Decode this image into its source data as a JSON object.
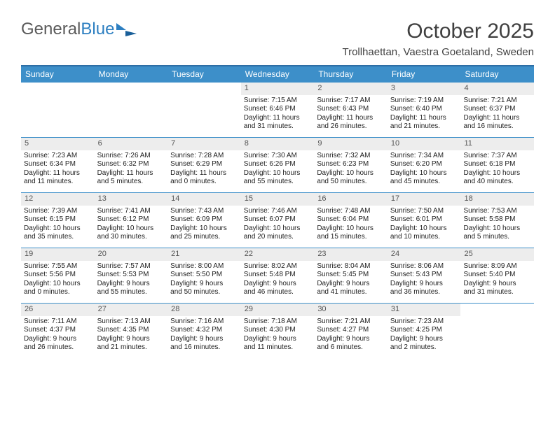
{
  "logo": {
    "text_a": "General",
    "text_b": "Blue"
  },
  "title": "October 2025",
  "subtitle": "Trollhaettan, Vaestra Goetaland, Sweden",
  "colors": {
    "header_bg": "#3d8fc9",
    "header_border": "#2d6ea5",
    "week_border": "#3d8fc9",
    "daynum_bg": "#ededed",
    "text": "#333333"
  },
  "day_labels": [
    "Sunday",
    "Monday",
    "Tuesday",
    "Wednesday",
    "Thursday",
    "Friday",
    "Saturday"
  ],
  "weeks": [
    [
      {
        "day": "",
        "empty": true
      },
      {
        "day": "",
        "empty": true
      },
      {
        "day": "",
        "empty": true
      },
      {
        "day": "1",
        "sunrise": "Sunrise: 7:15 AM",
        "sunset": "Sunset: 6:46 PM",
        "daylight1": "Daylight: 11 hours",
        "daylight2": "and 31 minutes."
      },
      {
        "day": "2",
        "sunrise": "Sunrise: 7:17 AM",
        "sunset": "Sunset: 6:43 PM",
        "daylight1": "Daylight: 11 hours",
        "daylight2": "and 26 minutes."
      },
      {
        "day": "3",
        "sunrise": "Sunrise: 7:19 AM",
        "sunset": "Sunset: 6:40 PM",
        "daylight1": "Daylight: 11 hours",
        "daylight2": "and 21 minutes."
      },
      {
        "day": "4",
        "sunrise": "Sunrise: 7:21 AM",
        "sunset": "Sunset: 6:37 PM",
        "daylight1": "Daylight: 11 hours",
        "daylight2": "and 16 minutes."
      }
    ],
    [
      {
        "day": "5",
        "sunrise": "Sunrise: 7:23 AM",
        "sunset": "Sunset: 6:34 PM",
        "daylight1": "Daylight: 11 hours",
        "daylight2": "and 11 minutes."
      },
      {
        "day": "6",
        "sunrise": "Sunrise: 7:26 AM",
        "sunset": "Sunset: 6:32 PM",
        "daylight1": "Daylight: 11 hours",
        "daylight2": "and 5 minutes."
      },
      {
        "day": "7",
        "sunrise": "Sunrise: 7:28 AM",
        "sunset": "Sunset: 6:29 PM",
        "daylight1": "Daylight: 11 hours",
        "daylight2": "and 0 minutes."
      },
      {
        "day": "8",
        "sunrise": "Sunrise: 7:30 AM",
        "sunset": "Sunset: 6:26 PM",
        "daylight1": "Daylight: 10 hours",
        "daylight2": "and 55 minutes."
      },
      {
        "day": "9",
        "sunrise": "Sunrise: 7:32 AM",
        "sunset": "Sunset: 6:23 PM",
        "daylight1": "Daylight: 10 hours",
        "daylight2": "and 50 minutes."
      },
      {
        "day": "10",
        "sunrise": "Sunrise: 7:34 AM",
        "sunset": "Sunset: 6:20 PM",
        "daylight1": "Daylight: 10 hours",
        "daylight2": "and 45 minutes."
      },
      {
        "day": "11",
        "sunrise": "Sunrise: 7:37 AM",
        "sunset": "Sunset: 6:18 PM",
        "daylight1": "Daylight: 10 hours",
        "daylight2": "and 40 minutes."
      }
    ],
    [
      {
        "day": "12",
        "sunrise": "Sunrise: 7:39 AM",
        "sunset": "Sunset: 6:15 PM",
        "daylight1": "Daylight: 10 hours",
        "daylight2": "and 35 minutes."
      },
      {
        "day": "13",
        "sunrise": "Sunrise: 7:41 AM",
        "sunset": "Sunset: 6:12 PM",
        "daylight1": "Daylight: 10 hours",
        "daylight2": "and 30 minutes."
      },
      {
        "day": "14",
        "sunrise": "Sunrise: 7:43 AM",
        "sunset": "Sunset: 6:09 PM",
        "daylight1": "Daylight: 10 hours",
        "daylight2": "and 25 minutes."
      },
      {
        "day": "15",
        "sunrise": "Sunrise: 7:46 AM",
        "sunset": "Sunset: 6:07 PM",
        "daylight1": "Daylight: 10 hours",
        "daylight2": "and 20 minutes."
      },
      {
        "day": "16",
        "sunrise": "Sunrise: 7:48 AM",
        "sunset": "Sunset: 6:04 PM",
        "daylight1": "Daylight: 10 hours",
        "daylight2": "and 15 minutes."
      },
      {
        "day": "17",
        "sunrise": "Sunrise: 7:50 AM",
        "sunset": "Sunset: 6:01 PM",
        "daylight1": "Daylight: 10 hours",
        "daylight2": "and 10 minutes."
      },
      {
        "day": "18",
        "sunrise": "Sunrise: 7:53 AM",
        "sunset": "Sunset: 5:58 PM",
        "daylight1": "Daylight: 10 hours",
        "daylight2": "and 5 minutes."
      }
    ],
    [
      {
        "day": "19",
        "sunrise": "Sunrise: 7:55 AM",
        "sunset": "Sunset: 5:56 PM",
        "daylight1": "Daylight: 10 hours",
        "daylight2": "and 0 minutes."
      },
      {
        "day": "20",
        "sunrise": "Sunrise: 7:57 AM",
        "sunset": "Sunset: 5:53 PM",
        "daylight1": "Daylight: 9 hours",
        "daylight2": "and 55 minutes."
      },
      {
        "day": "21",
        "sunrise": "Sunrise: 8:00 AM",
        "sunset": "Sunset: 5:50 PM",
        "daylight1": "Daylight: 9 hours",
        "daylight2": "and 50 minutes."
      },
      {
        "day": "22",
        "sunrise": "Sunrise: 8:02 AM",
        "sunset": "Sunset: 5:48 PM",
        "daylight1": "Daylight: 9 hours",
        "daylight2": "and 46 minutes."
      },
      {
        "day": "23",
        "sunrise": "Sunrise: 8:04 AM",
        "sunset": "Sunset: 5:45 PM",
        "daylight1": "Daylight: 9 hours",
        "daylight2": "and 41 minutes."
      },
      {
        "day": "24",
        "sunrise": "Sunrise: 8:06 AM",
        "sunset": "Sunset: 5:43 PM",
        "daylight1": "Daylight: 9 hours",
        "daylight2": "and 36 minutes."
      },
      {
        "day": "25",
        "sunrise": "Sunrise: 8:09 AM",
        "sunset": "Sunset: 5:40 PM",
        "daylight1": "Daylight: 9 hours",
        "daylight2": "and 31 minutes."
      }
    ],
    [
      {
        "day": "26",
        "sunrise": "Sunrise: 7:11 AM",
        "sunset": "Sunset: 4:37 PM",
        "daylight1": "Daylight: 9 hours",
        "daylight2": "and 26 minutes."
      },
      {
        "day": "27",
        "sunrise": "Sunrise: 7:13 AM",
        "sunset": "Sunset: 4:35 PM",
        "daylight1": "Daylight: 9 hours",
        "daylight2": "and 21 minutes."
      },
      {
        "day": "28",
        "sunrise": "Sunrise: 7:16 AM",
        "sunset": "Sunset: 4:32 PM",
        "daylight1": "Daylight: 9 hours",
        "daylight2": "and 16 minutes."
      },
      {
        "day": "29",
        "sunrise": "Sunrise: 7:18 AM",
        "sunset": "Sunset: 4:30 PM",
        "daylight1": "Daylight: 9 hours",
        "daylight2": "and 11 minutes."
      },
      {
        "day": "30",
        "sunrise": "Sunrise: 7:21 AM",
        "sunset": "Sunset: 4:27 PM",
        "daylight1": "Daylight: 9 hours",
        "daylight2": "and 6 minutes."
      },
      {
        "day": "31",
        "sunrise": "Sunrise: 7:23 AM",
        "sunset": "Sunset: 4:25 PM",
        "daylight1": "Daylight: 9 hours",
        "daylight2": "and 2 minutes."
      },
      {
        "day": "",
        "empty": true
      }
    ]
  ]
}
